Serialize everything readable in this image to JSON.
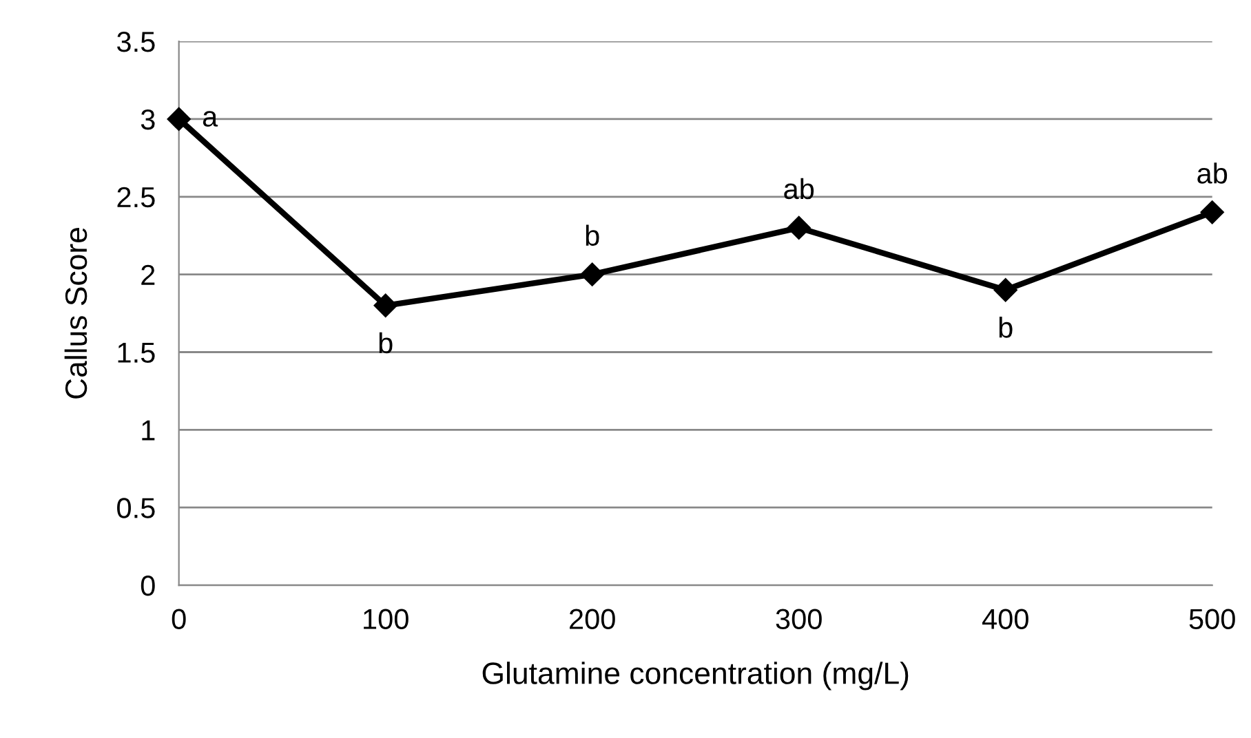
{
  "chart_data": {
    "type": "line",
    "xlabel": "Glutamine concentration (mg/L)",
    "ylabel": "Callus Score",
    "x": [
      0,
      100,
      200,
      300,
      400,
      500
    ],
    "series": [
      {
        "color": "#000000",
        "values": [
          3,
          1.8,
          2.0,
          2.3,
          1.9,
          2.4
        ]
      }
    ],
    "xlim": [
      0,
      500
    ],
    "xticks": [
      0,
      100,
      200,
      300,
      400,
      500
    ],
    "ylim": [
      0,
      3.5
    ],
    "yticks": [
      0,
      0.5,
      1,
      1.5,
      2,
      2.5,
      3,
      3.5
    ],
    "grid": "y",
    "legend": false,
    "marker": "diamond",
    "line_style": "solid",
    "annotations": [
      {
        "text": "a",
        "x": 0,
        "y": 3
      },
      {
        "text": "b",
        "x": 100,
        "y": 1.8
      },
      {
        "text": "b",
        "x": 200,
        "y": 2.0
      },
      {
        "text": "ab",
        "x": 300,
        "y": 2.3
      },
      {
        "text": "b",
        "x": 400,
        "y": 1.9
      },
      {
        "text": "ab",
        "x": 500,
        "y": 2.4
      }
    ]
  }
}
